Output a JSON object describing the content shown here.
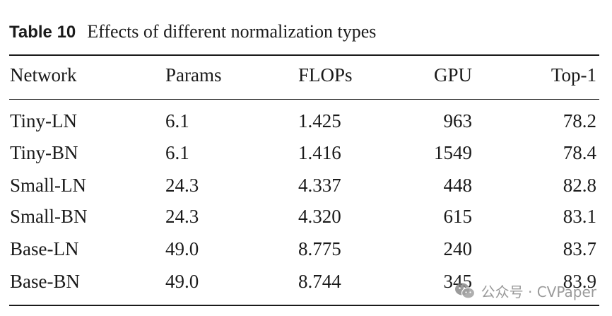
{
  "caption": {
    "label": "Table 10",
    "text": "Effects of different normalization types"
  },
  "header": [
    "Network",
    "Params",
    "FLOPs",
    "GPU",
    "Top-1"
  ],
  "rows": [
    [
      "Tiny-LN",
      "6.1",
      "1.425",
      "963",
      "78.2"
    ],
    [
      "Tiny-BN",
      "6.1",
      "1.416",
      "1549",
      "78.4"
    ],
    [
      "Small-LN",
      "24.3",
      "4.337",
      "448",
      "82.8"
    ],
    [
      "Small-BN",
      "24.3",
      "4.320",
      "615",
      "83.1"
    ],
    [
      "Base-LN",
      "49.0",
      "8.775",
      "240",
      "83.7"
    ],
    [
      "Base-BN",
      "49.0",
      "8.744",
      "345",
      "83.9"
    ]
  ],
  "watermark": {
    "text": "公众号 · CVPaper",
    "icon": "wechat-icon"
  }
}
